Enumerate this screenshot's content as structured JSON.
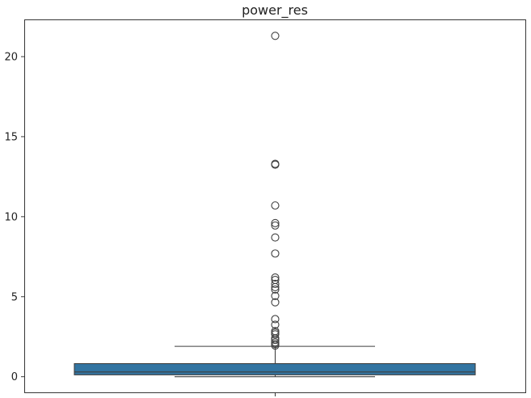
{
  "chart_data": {
    "type": "box",
    "title": "power_res",
    "xlabel": "",
    "ylabel": "",
    "ylim": [
      -1.0,
      22.3
    ],
    "yticks": [
      0,
      5,
      10,
      15,
      20
    ],
    "ytick_labels": [
      "0",
      "5",
      "10",
      "15",
      "20"
    ],
    "grid": false,
    "box": {
      "min": 0.0,
      "q1": 0.12,
      "median": 0.3,
      "q3": 0.82,
      "whisker_low": 0.0,
      "whisker_high": 1.9,
      "color": "#3274a1",
      "edge_color": "#3f3f3f"
    },
    "outliers": [
      21.3,
      13.3,
      13.25,
      10.7,
      9.6,
      9.45,
      8.7,
      7.7,
      6.2,
      6.05,
      5.8,
      5.6,
      5.45,
      5.05,
      4.65,
      3.6,
      3.25,
      2.85,
      2.75,
      2.65,
      2.4,
      2.3,
      2.15,
      2.05,
      1.95
    ]
  }
}
